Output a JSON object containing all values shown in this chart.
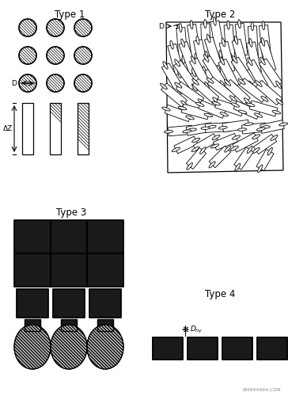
{
  "bg_color": "#ffffff",
  "text_color": "#000000",
  "type1_label": "Type 1",
  "type2_label": "Type 2",
  "type3_label": "Type 3",
  "type4_label": "Type 4",
  "watermark": "RH944064.CDR",
  "label_fontsize": 8.5,
  "small_fontsize": 6.5,
  "fig_width": 3.64,
  "fig_height": 5.0,
  "dpi": 100,
  "dark_fill": "#1a1a1a",
  "mid_fill": "#444444",
  "white_fill": "#ffffff"
}
